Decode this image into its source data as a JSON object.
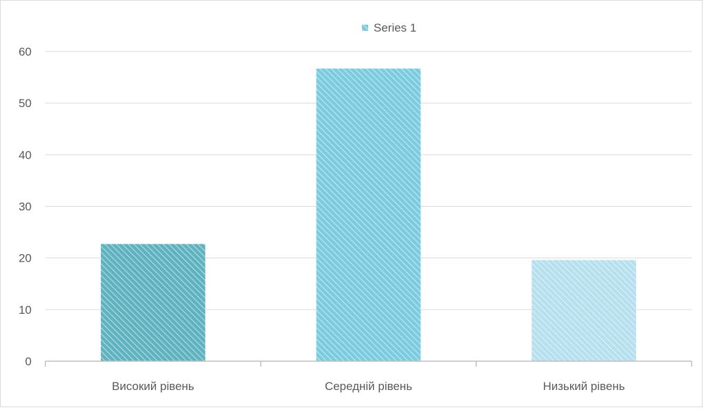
{
  "chart_data": {
    "type": "bar",
    "categories": [
      "Високий рівень",
      "Середній рівень",
      "Низький рівень"
    ],
    "series": [
      {
        "name": "Series 1",
        "values": [
          22.7,
          56.7,
          19.6
        ]
      }
    ],
    "ylim": [
      0,
      60
    ],
    "yticks": [
      0,
      10,
      20,
      30,
      40,
      50,
      60
    ],
    "grid": true,
    "legend": "top-center",
    "colors": {
      "bars": [
        "#5fb3c0",
        "#7ccce0",
        "#b6e0ee"
      ],
      "stripe": "#ffffff",
      "grid": "#d9d9d9",
      "axis": "#bfbfbf",
      "text": "#595959"
    }
  }
}
